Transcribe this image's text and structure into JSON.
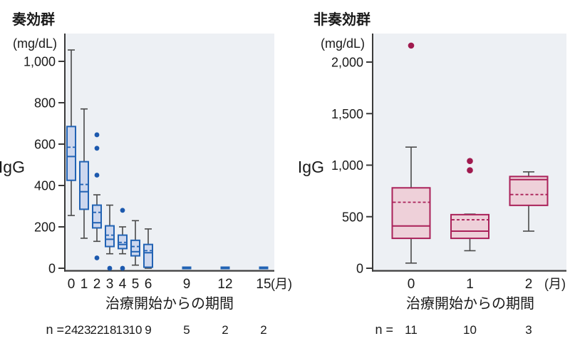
{
  "chart_data": [
    {
      "type": "boxplot",
      "title": "奏効群",
      "unit": "(mg/dL)",
      "ylabel": "IgG",
      "xlabel": "治療開始からの期間",
      "month_suffix": "(月)",
      "n_prefix": "n =",
      "ylim": [
        0,
        1100
      ],
      "y_ticks": [
        0,
        200,
        400,
        600,
        800,
        1000
      ],
      "y_tick_labels": [
        "0",
        "200",
        "400",
        "600",
        "800",
        "1,000"
      ],
      "x_months": [
        0,
        1,
        2,
        3,
        4,
        5,
        6,
        9,
        12,
        15
      ],
      "boxes": [
        {
          "month": 0,
          "n": 24,
          "whisker_low": 255,
          "q1": 425,
          "median": 540,
          "mean": 585,
          "q3": 685,
          "whisker_high": 1055,
          "outliers": []
        },
        {
          "month": 1,
          "n": 23,
          "whisker_low": 145,
          "q1": 285,
          "median": 370,
          "mean": 405,
          "q3": 515,
          "whisker_high": 770,
          "outliers": []
        },
        {
          "month": 2,
          "n": 22,
          "whisker_low": 130,
          "q1": 195,
          "median": 220,
          "mean": 270,
          "q3": 305,
          "whisker_high": 355,
          "outliers": [
            645,
            580,
            450,
            50
          ]
        },
        {
          "month": 3,
          "n": 18,
          "whisker_low": 70,
          "q1": 105,
          "median": 140,
          "mean": 160,
          "q3": 205,
          "whisker_high": 305,
          "outliers": [
            0
          ]
        },
        {
          "month": 4,
          "n": 13,
          "whisker_low": 70,
          "q1": 95,
          "median": 115,
          "mean": 125,
          "q3": 160,
          "whisker_high": 200,
          "outliers": [
            280,
            0
          ]
        },
        {
          "month": 5,
          "n": 10,
          "whisker_low": 15,
          "q1": 60,
          "median": 80,
          "mean": 105,
          "q3": 135,
          "whisker_high": 230,
          "outliers": []
        },
        {
          "month": 6,
          "n": 9,
          "whisker_low": 0,
          "q1": 5,
          "median": 75,
          "mean": 85,
          "q3": 115,
          "whisker_high": 190,
          "outliers": []
        },
        {
          "month": 9,
          "n": 5,
          "whisker_low": 0,
          "q1": 0,
          "median": 0,
          "mean": 0,
          "q3": 0,
          "whisker_high": 0,
          "outliers": []
        },
        {
          "month": 12,
          "n": 2,
          "whisker_low": 0,
          "q1": 0,
          "median": 0,
          "mean": 0,
          "q3": 0,
          "whisker_high": 0,
          "outliers": []
        },
        {
          "month": 15,
          "n": 2,
          "whisker_low": 0,
          "q1": 0,
          "median": 0,
          "mean": 0,
          "q3": 0,
          "whisker_high": 0,
          "outliers": []
        }
      ],
      "colors": {
        "box_fill": "#cdd7ee",
        "box_border": "#2263b4",
        "outlier": "#1c59ae",
        "whisker": "#4a4a4a",
        "plot_bg": "#edf0f4",
        "axis": "#3a3a3a"
      }
    },
    {
      "type": "boxplot",
      "title": "非奏効群",
      "unit": "(mg/dL)",
      "ylabel": "IgG",
      "xlabel": "治療開始からの期間",
      "month_suffix": "(月)",
      "n_prefix": "n =",
      "ylim": [
        0,
        2250
      ],
      "y_ticks": [
        0,
        500,
        1000,
        1500,
        2000
      ],
      "y_tick_labels": [
        "0",
        "500",
        "1,000",
        "1,500",
        "2,000"
      ],
      "x_months": [
        0,
        1,
        2
      ],
      "boxes": [
        {
          "month": 0,
          "n": 11,
          "whisker_low": 50,
          "q1": 290,
          "median": 410,
          "mean": 640,
          "q3": 780,
          "whisker_high": 1175,
          "outliers": [
            2160
          ]
        },
        {
          "month": 1,
          "n": 10,
          "whisker_low": 170,
          "q1": 290,
          "median": 360,
          "mean": 470,
          "q3": 520,
          "whisker_high": 525,
          "outliers": [
            1040,
            950
          ]
        },
        {
          "month": 2,
          "n": 3,
          "whisker_low": 360,
          "q1": 610,
          "median": 860,
          "mean": 715,
          "q3": 890,
          "whisker_high": 935,
          "outliers": []
        }
      ],
      "colors": {
        "box_fill": "#eed0d9",
        "box_border": "#aa2159",
        "outlier": "#a01a4e",
        "whisker": "#4a4a4a",
        "plot_bg": "#edf0f4",
        "axis": "#3a3a3a"
      }
    }
  ]
}
